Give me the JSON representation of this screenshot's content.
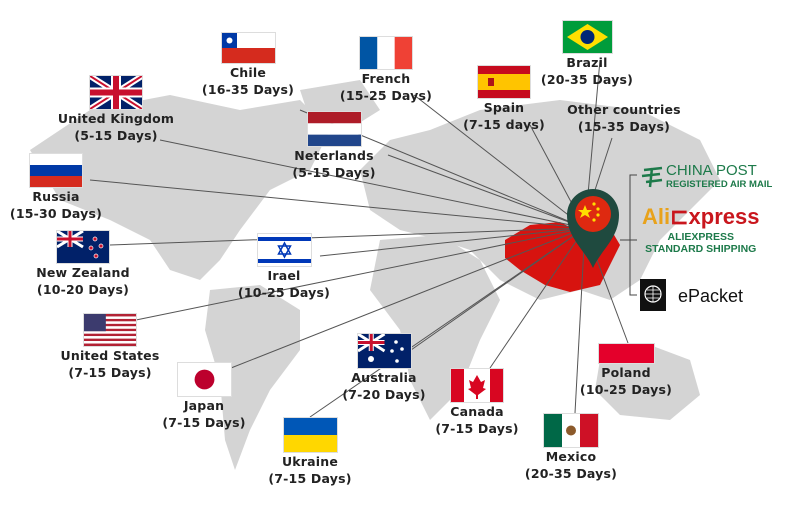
{
  "origin": {
    "country": "China",
    "pin_color": "#1f4a3f",
    "country_color": "#d7130f"
  },
  "countries": [
    {
      "name": "Chile",
      "days": "(16-35 Days)",
      "flag": "chile"
    },
    {
      "name": "French",
      "days": "(15-25 Days)",
      "flag": "france"
    },
    {
      "name": "Brazil",
      "days": "(20-35 Days)",
      "flag": "brazil"
    },
    {
      "name": "United Kingdom",
      "days": "(5-15 Days)",
      "flag": "uk"
    },
    {
      "name": "Spain",
      "days": "(7-15 days)",
      "flag": "spain"
    },
    {
      "name": "Neterlands",
      "days": "(5-15 Days)",
      "flag": "netherlands"
    },
    {
      "name": "Russia",
      "days": "(15-30 Days)",
      "flag": "russia"
    },
    {
      "name": "New Zealand",
      "days": "(10-20 Days)",
      "flag": "nz"
    },
    {
      "name": "Irael",
      "days": "(10-25 Days)",
      "flag": "israel"
    },
    {
      "name": "United States",
      "days": "(7-15 Days)",
      "flag": "usa"
    },
    {
      "name": "Australia",
      "days": "(7-20 Days)",
      "flag": "australia"
    },
    {
      "name": "Japan",
      "days": "(7-15 Days)",
      "flag": "japan"
    },
    {
      "name": "Poland",
      "days": "(10-25 Days)",
      "flag": "poland"
    },
    {
      "name": "Canada",
      "days": "(7-15 Days)",
      "flag": "canada"
    },
    {
      "name": "Ukraine",
      "days": "(7-15 Days)",
      "flag": "ukraine"
    },
    {
      "name": "Mexico",
      "days": "(20-35 Days)",
      "flag": "mexico"
    }
  ],
  "other_countries": {
    "name": "Other countries",
    "days": "(15-35 Days)"
  },
  "shipping": {
    "china_post": {
      "title": "CHINA POST",
      "subtitle": "REGISTERED AIR MAIL",
      "color": "#1d7a4a"
    },
    "aliexpress": {
      "logo": "AliExpress",
      "line1": "ALIEXPRESS",
      "line2": "STANDARD SHIPPING",
      "color": "#1d7a4a",
      "ali_color": "#e8a21b",
      "express_color": "#c9161d"
    },
    "epacket": {
      "label": "ePacket",
      "icon": "epacket-globe-icon"
    }
  }
}
